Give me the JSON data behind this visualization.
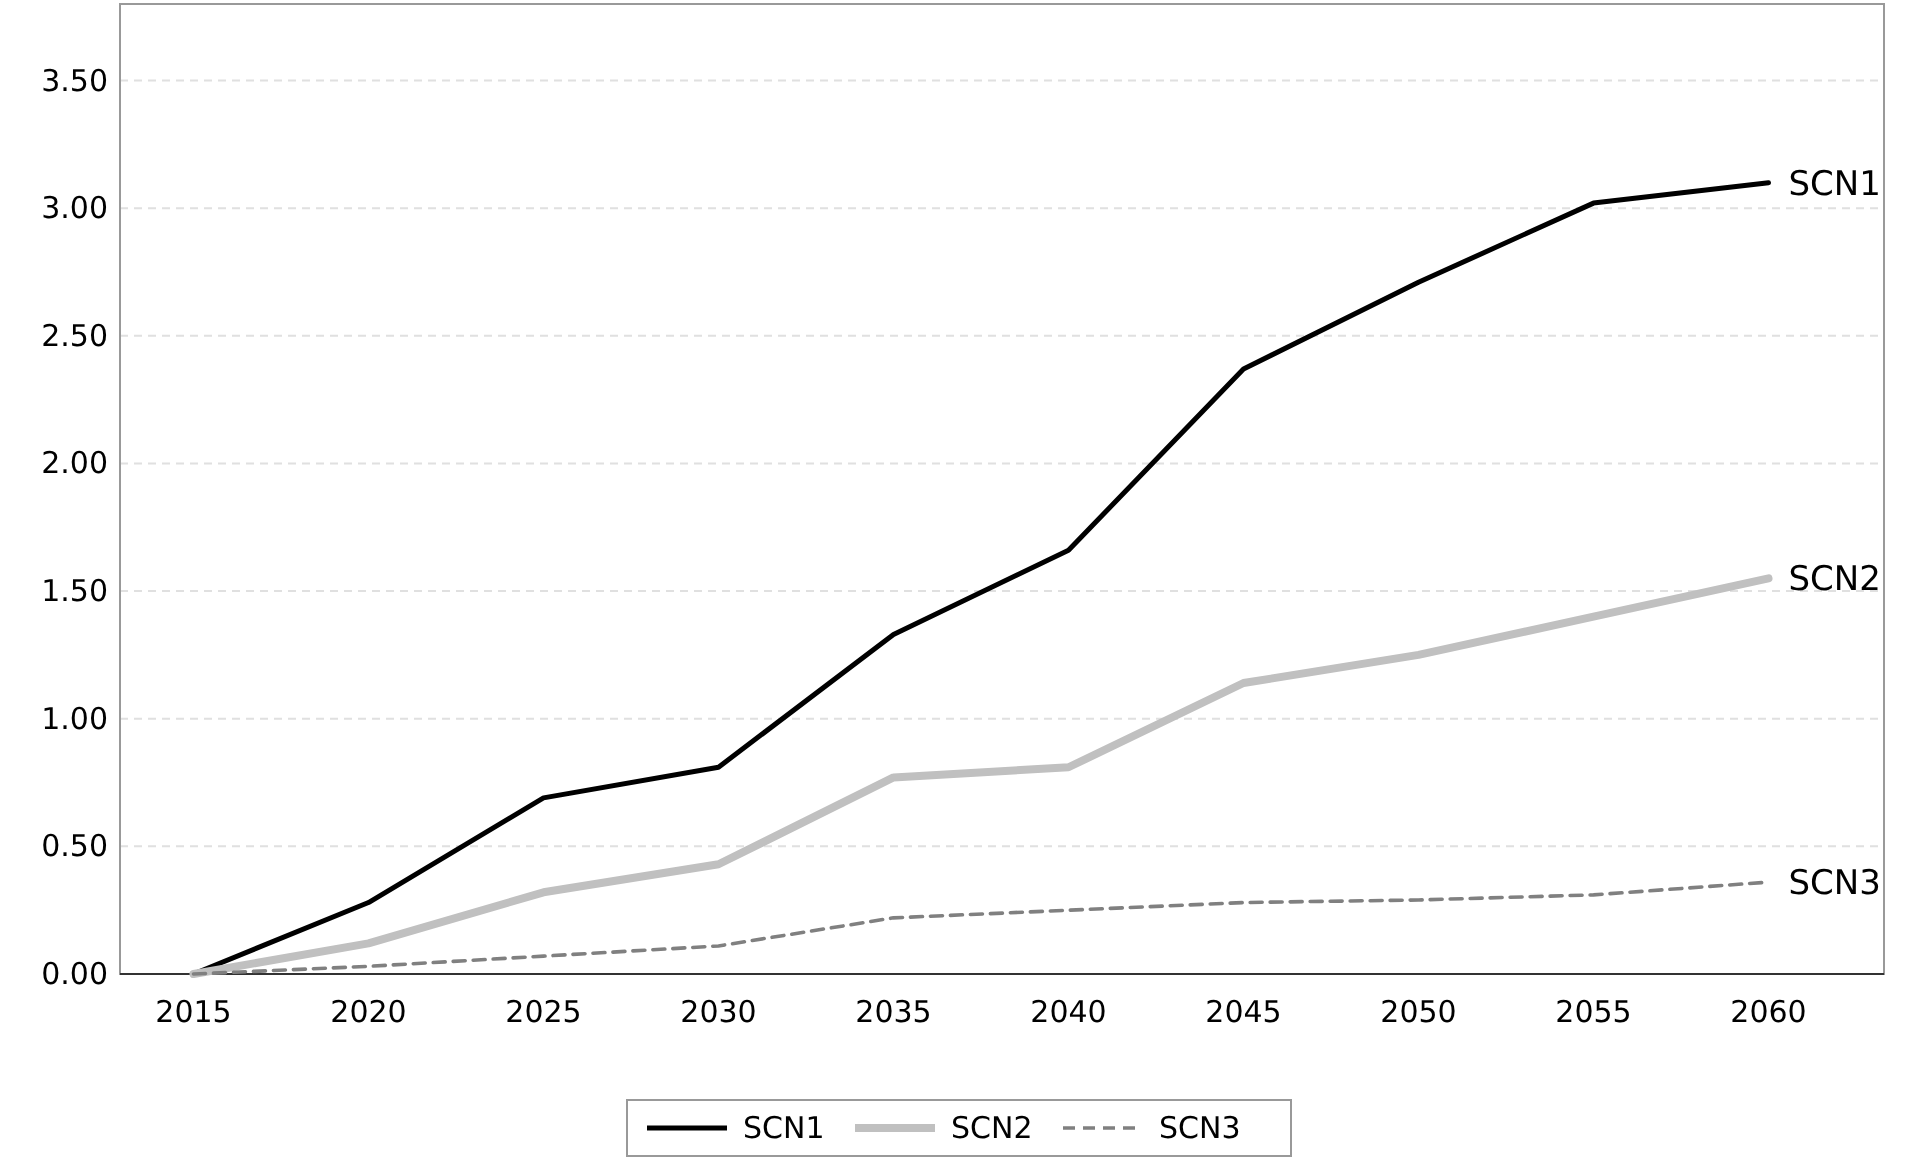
{
  "chart_data": {
    "type": "line",
    "x": [
      2015,
      2020,
      2025,
      2030,
      2035,
      2040,
      2045,
      2050,
      2055,
      2060
    ],
    "series": [
      {
        "name": "SCN1",
        "color": "#000000",
        "line_style": "solid",
        "values": [
          0,
          0.28,
          0.69,
          0.81,
          1.33,
          1.66,
          2.37,
          2.71,
          3.02,
          3.1
        ]
      },
      {
        "name": "SCN2",
        "color": "#c0c0c0",
        "line_style": "solid",
        "values": [
          0,
          0.12,
          0.32,
          0.43,
          0.77,
          0.81,
          1.14,
          1.25,
          1.4,
          1.55
        ]
      },
      {
        "name": "SCN3",
        "color": "#808080",
        "line_style": "dashed",
        "values": [
          0,
          0.03,
          0.07,
          0.11,
          0.22,
          0.25,
          0.28,
          0.29,
          0.31,
          0.36
        ]
      }
    ],
    "xlim": [
      2012.9,
      2063.3
    ],
    "xticks": [
      2015,
      2020,
      2025,
      2030,
      2035,
      2040,
      2045,
      2050,
      2055,
      2060
    ],
    "ylim": [
      0,
      3.8
    ],
    "yticks": [
      {
        "value": 0,
        "label": "0.00"
      },
      {
        "value": 0.5,
        "label": "0.50"
      },
      {
        "value": 1,
        "label": "1.00"
      },
      {
        "value": 1.5,
        "label": "1.50"
      },
      {
        "value": 2,
        "label": "2.00"
      },
      {
        "value": 2.5,
        "label": "2.50"
      },
      {
        "value": 3,
        "label": "3.00"
      },
      {
        "value": 3.5,
        "label": "3.50"
      }
    ],
    "grid": "y",
    "legend": "bottom",
    "marker": "none"
  }
}
